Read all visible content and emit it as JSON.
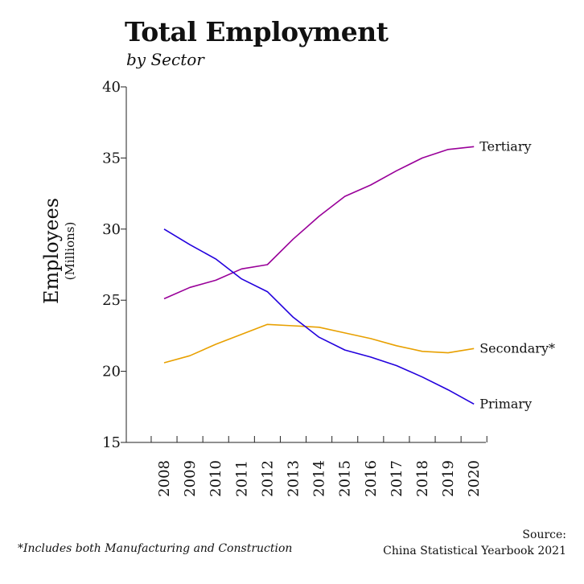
{
  "title": "Total Employment",
  "subtitle": "by Sector",
  "footnote": "*Includes both Manufacturing and Construction",
  "source": {
    "line1": "Source:",
    "line2": "China Statistical Yearbook 2021"
  },
  "chart_data": {
    "type": "line",
    "title": "Total Employment",
    "subtitle": "by Sector",
    "ylabel": "Employees",
    "ylabel_sub": "(Millions)",
    "xlabel": "",
    "ylim": [
      15,
      40
    ],
    "yticks": [
      15,
      20,
      25,
      30,
      35,
      40
    ],
    "x": [
      "2008",
      "2009",
      "2010",
      "2011",
      "2012",
      "2013",
      "2014",
      "2015",
      "2016",
      "2017",
      "2018",
      "2019",
      "2020"
    ],
    "grid": false,
    "legend": "labels at line ends (right)",
    "series": [
      {
        "name": "Tertiary",
        "color": "#990099",
        "values": [
          25.1,
          25.9,
          26.4,
          27.2,
          27.5,
          29.3,
          30.9,
          32.3,
          33.1,
          34.1,
          35.0,
          35.6,
          35.8
        ]
      },
      {
        "name": "Secondary*",
        "color": "#e8a000",
        "values": [
          20.6,
          21.1,
          21.9,
          22.6,
          23.3,
          23.2,
          23.1,
          22.7,
          22.3,
          21.8,
          21.4,
          21.3,
          21.6
        ]
      },
      {
        "name": "Primary",
        "color": "#2200dd",
        "values": [
          30.0,
          28.9,
          27.9,
          26.5,
          25.6,
          23.8,
          22.4,
          21.5,
          21.0,
          20.4,
          19.6,
          18.7,
          17.7
        ]
      }
    ]
  }
}
